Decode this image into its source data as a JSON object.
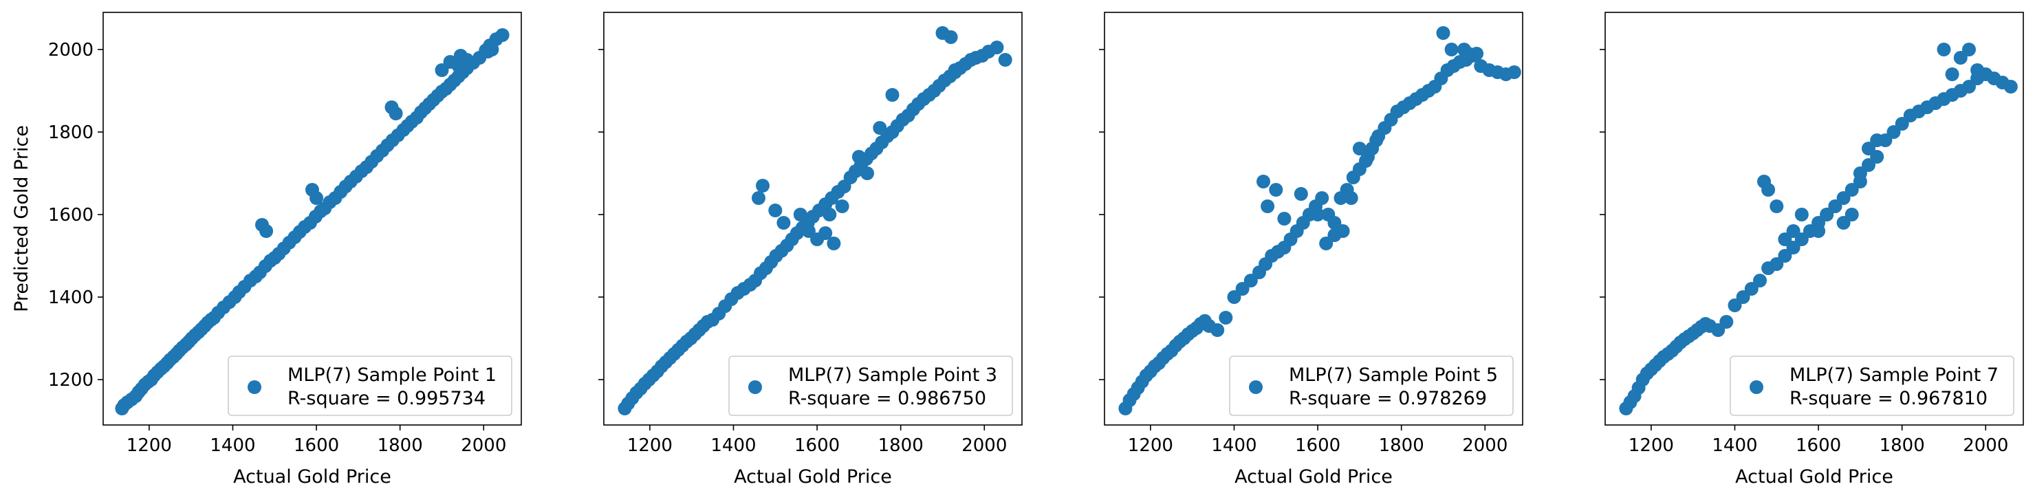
{
  "chart_data": [
    {
      "type": "scatter",
      "xlabel": "Actual Gold Price",
      "ylabel": "Predicted Gold Price",
      "xlim": [
        1090,
        2090
      ],
      "ylim": [
        1090,
        2090
      ],
      "xticks": [
        1200,
        1400,
        1600,
        1800,
        2000
      ],
      "yticks": [
        1200,
        1400,
        1600,
        1800,
        2000
      ],
      "show_yticks": true,
      "legend_placement": "lower-right",
      "series": [
        {
          "name": "MLP(7) Sample Point 1",
          "r_label": "R-square = 0.995734",
          "color": "#1f77b4",
          "x": [
            1135,
            1140,
            1148,
            1158,
            1168,
            1175,
            1182,
            1190,
            1198,
            1205,
            1212,
            1220,
            1228,
            1235,
            1243,
            1250,
            1258,
            1265,
            1272,
            1280,
            1288,
            1295,
            1302,
            1310,
            1318,
            1325,
            1333,
            1340,
            1348,
            1355,
            1365,
            1378,
            1392,
            1405,
            1415,
            1428,
            1442,
            1455,
            1465,
            1478,
            1490,
            1500,
            1510,
            1522,
            1535,
            1548,
            1560,
            1572,
            1585,
            1598,
            1610,
            1620,
            1632,
            1645,
            1658,
            1670,
            1682,
            1695,
            1708,
            1720,
            1732,
            1745,
            1758,
            1770,
            1782,
            1795,
            1808,
            1818,
            1828,
            1840,
            1850,
            1860,
            1870,
            1880,
            1890,
            1900,
            1910,
            1920,
            1930,
            1940,
            1950,
            1960,
            1975,
            1990,
            2005,
            2015,
            2030,
            2045,
            1940,
            1945,
            1960,
            1780,
            1790,
            1590,
            1600,
            1470,
            1480,
            1900,
            1920,
            2010,
            2020
          ],
          "y": [
            1130,
            1138,
            1145,
            1152,
            1160,
            1170,
            1178,
            1188,
            1195,
            1200,
            1210,
            1218,
            1226,
            1232,
            1240,
            1248,
            1255,
            1262,
            1270,
            1278,
            1285,
            1292,
            1300,
            1308,
            1315,
            1322,
            1330,
            1338,
            1345,
            1350,
            1362,
            1375,
            1388,
            1400,
            1412,
            1425,
            1440,
            1450,
            1460,
            1475,
            1488,
            1495,
            1505,
            1518,
            1532,
            1545,
            1558,
            1570,
            1580,
            1595,
            1608,
            1615,
            1630,
            1640,
            1655,
            1668,
            1680,
            1692,
            1705,
            1715,
            1728,
            1742,
            1755,
            1768,
            1780,
            1792,
            1805,
            1815,
            1825,
            1835,
            1848,
            1858,
            1868,
            1878,
            1888,
            1898,
            1905,
            1915,
            1925,
            1935,
            1945,
            1955,
            1968,
            1980,
            1998,
            2010,
            2025,
            2035,
            1960,
            1985,
            1975,
            1860,
            1845,
            1660,
            1640,
            1575,
            1560,
            1950,
            1970,
            1995,
            2000
          ]
        }
      ]
    },
    {
      "type": "scatter",
      "xlabel": "Actual Gold Price",
      "ylabel": "",
      "xlim": [
        1090,
        2090
      ],
      "ylim": [
        1090,
        2090
      ],
      "xticks": [
        1200,
        1400,
        1600,
        1800,
        2000
      ],
      "yticks": [
        1200,
        1400,
        1600,
        1800,
        2000
      ],
      "show_yticks": false,
      "legend_placement": "lower-right",
      "series": [
        {
          "name": "MLP(7) Sample Point 3",
          "r_label": "R-square = 0.986750",
          "color": "#1f77b4",
          "x": [
            1140,
            1148,
            1158,
            1168,
            1178,
            1188,
            1198,
            1208,
            1218,
            1228,
            1238,
            1248,
            1258,
            1268,
            1278,
            1288,
            1298,
            1308,
            1318,
            1328,
            1338,
            1350,
            1365,
            1380,
            1395,
            1410,
            1425,
            1440,
            1452,
            1465,
            1478,
            1490,
            1502,
            1515,
            1528,
            1540,
            1552,
            1565,
            1578,
            1590,
            1605,
            1620,
            1635,
            1650,
            1665,
            1680,
            1692,
            1705,
            1718,
            1730,
            1742,
            1755,
            1768,
            1780,
            1792,
            1805,
            1818,
            1830,
            1842,
            1855,
            1868,
            1880,
            1892,
            1905,
            1918,
            1930,
            1942,
            1955,
            1968,
            1980,
            1995,
            2010,
            2030,
            2050,
            1460,
            1470,
            1500,
            1520,
            1560,
            1580,
            1600,
            1620,
            1630,
            1640,
            1660,
            1900,
            1920,
            1930,
            1700,
            1720,
            1750,
            1780
          ],
          "y": [
            1130,
            1142,
            1155,
            1168,
            1178,
            1190,
            1200,
            1210,
            1220,
            1232,
            1242,
            1252,
            1262,
            1272,
            1282,
            1292,
            1300,
            1310,
            1320,
            1330,
            1340,
            1345,
            1360,
            1378,
            1395,
            1410,
            1420,
            1430,
            1440,
            1458,
            1470,
            1485,
            1500,
            1512,
            1525,
            1540,
            1555,
            1568,
            1580,
            1595,
            1610,
            1625,
            1640,
            1655,
            1668,
            1690,
            1705,
            1720,
            1735,
            1748,
            1760,
            1775,
            1790,
            1800,
            1815,
            1830,
            1840,
            1855,
            1868,
            1880,
            1890,
            1900,
            1912,
            1925,
            1935,
            1945,
            1955,
            1965,
            1975,
            1980,
            1985,
            1995,
            2005,
            1975,
            1640,
            1670,
            1610,
            1580,
            1600,
            1560,
            1540,
            1555,
            1600,
            1530,
            1620,
            2040,
            2030,
            1950,
            1740,
            1700,
            1810,
            1890
          ]
        }
      ]
    },
    {
      "type": "scatter",
      "xlabel": "Actual Gold Price",
      "ylabel": "",
      "xlim": [
        1090,
        2090
      ],
      "ylim": [
        1090,
        2090
      ],
      "xticks": [
        1200,
        1400,
        1600,
        1800,
        2000
      ],
      "yticks": [
        1200,
        1400,
        1600,
        1800,
        2000
      ],
      "show_yticks": false,
      "legend_placement": "lower-right",
      "series": [
        {
          "name": "MLP(7) Sample Point 5",
          "r_label": "R-square = 0.978269",
          "color": "#1f77b4",
          "x": [
            1140,
            1150,
            1160,
            1170,
            1180,
            1190,
            1200,
            1210,
            1220,
            1230,
            1240,
            1250,
            1260,
            1270,
            1280,
            1290,
            1300,
            1310,
            1320,
            1330,
            1340,
            1360,
            1380,
            1400,
            1420,
            1440,
            1460,
            1475,
            1490,
            1505,
            1520,
            1535,
            1550,
            1565,
            1580,
            1595,
            1610,
            1625,
            1640,
            1655,
            1670,
            1685,
            1700,
            1715,
            1730,
            1745,
            1760,
            1775,
            1790,
            1805,
            1820,
            1835,
            1850,
            1865,
            1880,
            1895,
            1910,
            1925,
            1940,
            1955,
            1970,
            1990,
            2010,
            2030,
            2050,
            2070,
            1470,
            1480,
            1500,
            1520,
            1560,
            1600,
            1620,
            1640,
            1660,
            1680,
            1700,
            1720,
            1740,
            1900,
            1920,
            1950,
            1960,
            1980
          ],
          "y": [
            1130,
            1150,
            1165,
            1180,
            1195,
            1210,
            1220,
            1232,
            1240,
            1252,
            1262,
            1270,
            1282,
            1292,
            1300,
            1310,
            1318,
            1325,
            1335,
            1342,
            1330,
            1320,
            1350,
            1400,
            1420,
            1440,
            1460,
            1480,
            1500,
            1510,
            1520,
            1540,
            1560,
            1580,
            1600,
            1620,
            1640,
            1600,
            1580,
            1640,
            1660,
            1690,
            1710,
            1730,
            1760,
            1790,
            1810,
            1830,
            1850,
            1860,
            1870,
            1880,
            1890,
            1900,
            1910,
            1930,
            1950,
            1960,
            1970,
            1975,
            1985,
            1960,
            1950,
            1945,
            1940,
            1945,
            1680,
            1620,
            1660,
            1590,
            1650,
            1600,
            1530,
            1550,
            1560,
            1640,
            1760,
            1740,
            1780,
            2040,
            2000,
            2000,
            1990,
            1990
          ]
        }
      ]
    },
    {
      "type": "scatter",
      "xlabel": "Actual Gold Price",
      "ylabel": "",
      "xlim": [
        1090,
        2090
      ],
      "ylim": [
        1090,
        2090
      ],
      "xticks": [
        1200,
        1400,
        1600,
        1800,
        2000
      ],
      "yticks": [
        1200,
        1400,
        1600,
        1800,
        2000
      ],
      "show_yticks": false,
      "legend_placement": "lower-right",
      "series": [
        {
          "name": "MLP(7) Sample Point 7",
          "r_label": "R-square = 0.967810",
          "color": "#1f77b4",
          "x": [
            1140,
            1150,
            1160,
            1170,
            1180,
            1190,
            1200,
            1210,
            1220,
            1230,
            1240,
            1250,
            1260,
            1270,
            1280,
            1290,
            1300,
            1310,
            1320,
            1330,
            1340,
            1360,
            1380,
            1400,
            1420,
            1440,
            1460,
            1480,
            1500,
            1520,
            1540,
            1560,
            1580,
            1600,
            1620,
            1640,
            1660,
            1680,
            1700,
            1720,
            1740,
            1760,
            1780,
            1800,
            1820,
            1840,
            1860,
            1880,
            1900,
            1920,
            1940,
            1960,
            1980,
            2000,
            2020,
            2040,
            2060,
            1470,
            1480,
            1500,
            1520,
            1540,
            1560,
            1600,
            1620,
            1640,
            1660,
            1680,
            1700,
            1720,
            1740,
            1900,
            1920,
            1940,
            1960,
            1980
          ],
          "y": [
            1130,
            1145,
            1160,
            1180,
            1200,
            1215,
            1225,
            1235,
            1245,
            1255,
            1262,
            1270,
            1280,
            1290,
            1298,
            1305,
            1312,
            1320,
            1328,
            1335,
            1330,
            1320,
            1340,
            1380,
            1400,
            1420,
            1440,
            1470,
            1480,
            1500,
            1520,
            1540,
            1560,
            1580,
            1600,
            1620,
            1640,
            1660,
            1700,
            1720,
            1740,
            1780,
            1800,
            1820,
            1840,
            1850,
            1860,
            1870,
            1880,
            1890,
            1900,
            1910,
            1930,
            1940,
            1930,
            1920,
            1910,
            1680,
            1660,
            1620,
            1540,
            1560,
            1600,
            1560,
            1600,
            1620,
            1580,
            1600,
            1680,
            1760,
            1780,
            2000,
            1940,
            1980,
            2000,
            1950
          ]
        }
      ]
    }
  ]
}
